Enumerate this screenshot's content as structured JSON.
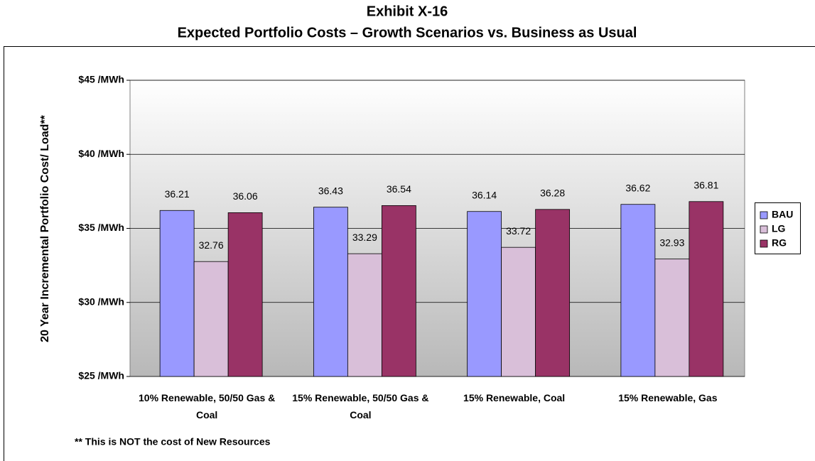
{
  "chart_data": {
    "type": "bar",
    "title": "Exhibit X-16",
    "subtitle": "Expected Portfolio Costs – Growth Scenarios vs. Business as Usual",
    "y_label": "20 Year Incremental Portfolio Cost/ Load**",
    "footnote": "** This is NOT the cost of New Resources",
    "categories": [
      "10% Renewable, 50/50 Gas & Coal",
      "15% Renewable, 50/50 Gas & Coal",
      "15% Renewable, Coal",
      "15% Renewable, Gas"
    ],
    "series": [
      {
        "name": "BAU",
        "color": "#9999ff",
        "values": [
          36.21,
          36.43,
          36.14,
          36.62
        ]
      },
      {
        "name": "LG",
        "color": "#d9bfd9",
        "values": [
          32.76,
          33.29,
          33.72,
          32.93
        ]
      },
      {
        "name": "RG",
        "color": "#993366",
        "values": [
          36.06,
          36.54,
          36.28,
          36.81
        ]
      }
    ],
    "ylim": [
      25,
      45
    ],
    "yticks": [
      {
        "value": 25,
        "label": "$25 /MWh"
      },
      {
        "value": 30,
        "label": "$30 /MWh"
      },
      {
        "value": 35,
        "label": "$35 /MWh"
      },
      {
        "value": 40,
        "label": "$40 /MWh"
      },
      {
        "value": 45,
        "label": "$45 /MWh"
      }
    ],
    "grid": true,
    "legend": "right"
  }
}
